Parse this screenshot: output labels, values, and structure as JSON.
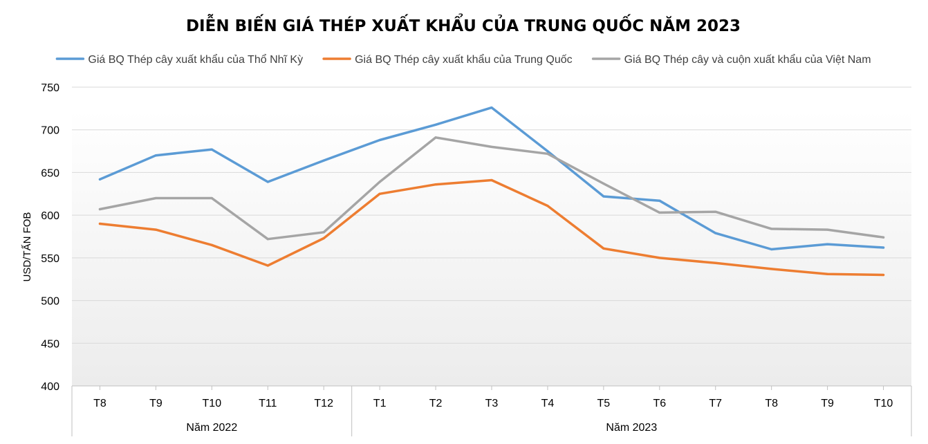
{
  "chart_data": {
    "type": "line",
    "title": "DIỄN BIẾN GIÁ THÉP XUẤT KHẨU CỦA TRUNG QUỐC NĂM 2023",
    "ylabel": "USD/TẤN FOB",
    "ylim": [
      400,
      750
    ],
    "yticks": [
      400,
      450,
      500,
      550,
      600,
      650,
      700,
      750
    ],
    "grid": true,
    "legend_position": "top",
    "categories": [
      "T8",
      "T9",
      "T10",
      "T11",
      "T12",
      "T1",
      "T2",
      "T3",
      "T4",
      "T5",
      "T6",
      "T7",
      "T8",
      "T9",
      "T10"
    ],
    "groups": [
      {
        "label": "Năm 2022",
        "count": 5
      },
      {
        "label": "Năm 2023",
        "count": 10
      }
    ],
    "series": [
      {
        "name": "Giá BQ Thép cây xuất khẩu của Thổ Nhĩ Kỳ",
        "color": "#5b9bd5",
        "values": [
          642,
          670,
          677,
          639,
          664,
          688,
          706,
          726,
          675,
          622,
          617,
          579,
          560,
          566,
          562
        ]
      },
      {
        "name": "Giá BQ Thép cây xuất khẩu của Trung Quốc",
        "color": "#ed7d31",
        "values": [
          590,
          583,
          565,
          541,
          573,
          625,
          636,
          641,
          611,
          561,
          550,
          544,
          537,
          531,
          530
        ]
      },
      {
        "name": "Giá BQ Thép cây và cuộn xuất khẩu của Việt Nam",
        "color": "#a5a5a5",
        "values": [
          607,
          620,
          620,
          572,
          580,
          639,
          691,
          680,
          672,
          637,
          603,
          604,
          584,
          583,
          574
        ]
      }
    ]
  }
}
